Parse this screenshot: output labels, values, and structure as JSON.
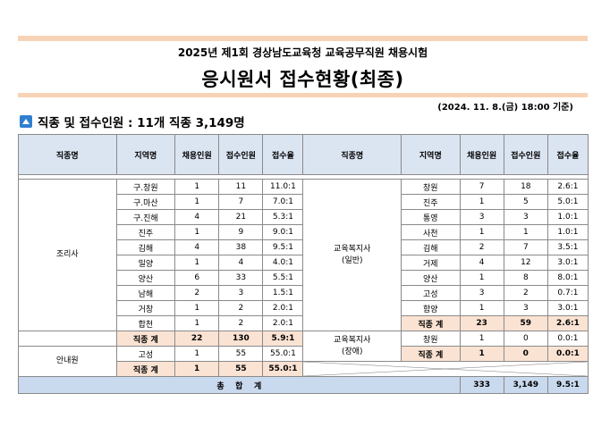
{
  "header": {
    "subtitle": "2025년 제1회 경상남도교육청 교육공무직원 채용시험",
    "title": "응시원서 접수현황(최종)",
    "date": "(2024. 11. 8.(금) 18:00 기준)",
    "summary": "직종 및 접수인원 : 11개 직종 3,149명"
  },
  "columns": [
    "직종명",
    "지역명",
    "채용인원",
    "접수인원",
    "접수율",
    "직종명",
    "지역명",
    "채용인원",
    "접수인원",
    "접수율"
  ],
  "left": {
    "job1": "조리사",
    "job1_rows": [
      {
        "region": "구.창원",
        "hire": "1",
        "apply": "11",
        "ratio": "11.0:1"
      },
      {
        "region": "구.마산",
        "hire": "1",
        "apply": "7",
        "ratio": "7.0:1"
      },
      {
        "region": "구.진해",
        "hire": "4",
        "apply": "21",
        "ratio": "5.3:1"
      },
      {
        "region": "진주",
        "hire": "1",
        "apply": "9",
        "ratio": "9.0:1"
      },
      {
        "region": "김해",
        "hire": "4",
        "apply": "38",
        "ratio": "9.5:1"
      },
      {
        "region": "밀양",
        "hire": "1",
        "apply": "4",
        "ratio": "4.0:1"
      },
      {
        "region": "양산",
        "hire": "6",
        "apply": "33",
        "ratio": "5.5:1"
      },
      {
        "region": "남해",
        "hire": "2",
        "apply": "3",
        "ratio": "1.5:1"
      },
      {
        "region": "거창",
        "hire": "1",
        "apply": "2",
        "ratio": "2.0:1"
      },
      {
        "region": "합천",
        "hire": "1",
        "apply": "2",
        "ratio": "2.0:1"
      }
    ],
    "job1_subtotal": {
      "label": "직종 계",
      "hire": "22",
      "apply": "130",
      "ratio": "5.9:1"
    },
    "job2": "안내원",
    "job2_rows": [
      {
        "region": "고성",
        "hire": "1",
        "apply": "55",
        "ratio": "55.0:1"
      }
    ],
    "job2_subtotal": {
      "label": "직종 계",
      "hire": "1",
      "apply": "55",
      "ratio": "55.0:1"
    }
  },
  "right": {
    "job1_line1": "교육복지사",
    "job1_line2": "(일반)",
    "job1_rows": [
      {
        "region": "창원",
        "hire": "7",
        "apply": "18",
        "ratio": "2.6:1"
      },
      {
        "region": "진주",
        "hire": "1",
        "apply": "5",
        "ratio": "5.0:1"
      },
      {
        "region": "통영",
        "hire": "3",
        "apply": "3",
        "ratio": "1.0:1"
      },
      {
        "region": "사천",
        "hire": "1",
        "apply": "1",
        "ratio": "1.0:1"
      },
      {
        "region": "김해",
        "hire": "2",
        "apply": "7",
        "ratio": "3.5:1"
      },
      {
        "region": "거제",
        "hire": "4",
        "apply": "12",
        "ratio": "3.0:1"
      },
      {
        "region": "양산",
        "hire": "1",
        "apply": "8",
        "ratio": "8.0:1"
      },
      {
        "region": "고성",
        "hire": "3",
        "apply": "2",
        "ratio": "0.7:1"
      },
      {
        "region": "함양",
        "hire": "1",
        "apply": "3",
        "ratio": "3.0:1"
      }
    ],
    "job1_subtotal": {
      "label": "직종 계",
      "hire": "23",
      "apply": "59",
      "ratio": "2.6:1"
    },
    "job2_line1": "교육복지사",
    "job2_line2": "(장애)",
    "job2_rows": [
      {
        "region": "창원",
        "hire": "1",
        "apply": "0",
        "ratio": "0.0:1"
      }
    ],
    "job2_subtotal": {
      "label": "직종 계",
      "hire": "1",
      "apply": "0",
      "ratio": "0.0:1"
    }
  },
  "total": {
    "label": "총    합    계",
    "hire": "333",
    "apply": "3,149",
    "ratio": "9.5:1"
  },
  "colors": {
    "header_bg": "#dbe4f1",
    "subtotal_bg": "#fbe3d3",
    "total_bg": "#c9d9ee",
    "bar": "#f7d3b6",
    "icon": "#2f7fd0"
  }
}
